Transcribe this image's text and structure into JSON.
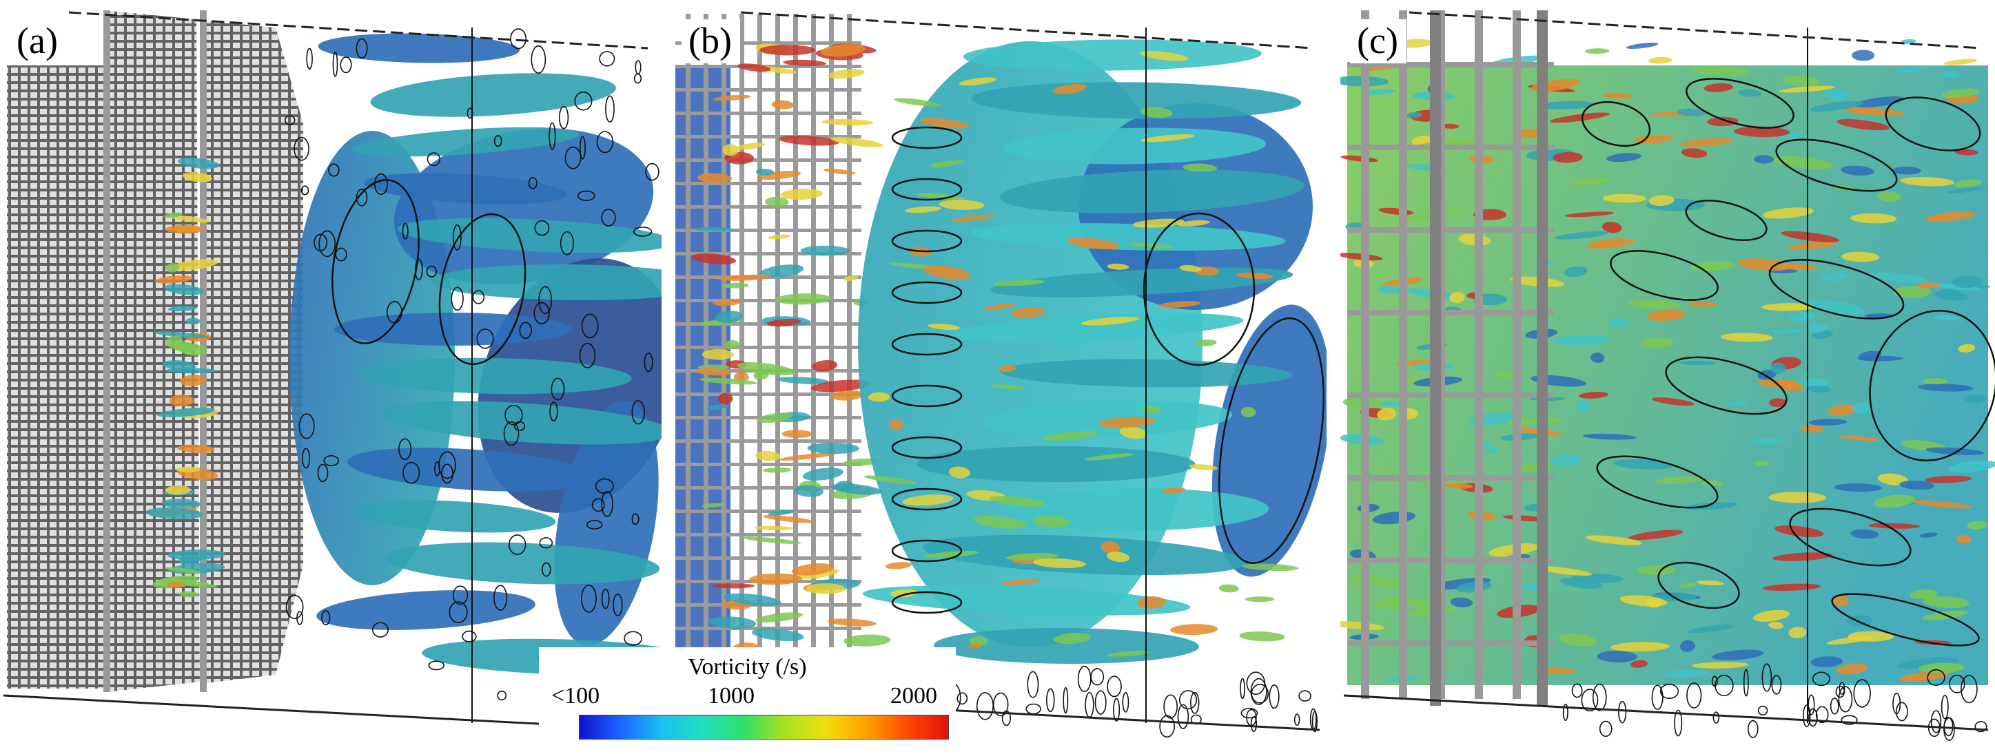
{
  "panels": [
    {
      "label": "(a)"
    },
    {
      "label": "(b)"
    },
    {
      "label": "(c)"
    }
  ],
  "colorbar": {
    "title": "Vorticity (/s)",
    "tick_min": "<100",
    "tick_mid": "1000",
    "tick_max": "2000",
    "colors": [
      "#1010d0",
      "#1a66ff",
      "#19c0f0",
      "#22e0c0",
      "#2ee06a",
      "#a8e020",
      "#f0e010",
      "#ffa000",
      "#ff4a00",
      "#e01010"
    ]
  },
  "palette": {
    "dark_blue": "#2a3f8c",
    "mid_blue": "#2f6fb8",
    "teal": "#33a3b3",
    "cyan": "#41c3c8",
    "green": "#7cc852",
    "yellow": "#e5d23a",
    "orange": "#e58a2a",
    "red": "#c8322a",
    "grid_gray": "#9a9a9a",
    "contour": "#111111"
  }
}
